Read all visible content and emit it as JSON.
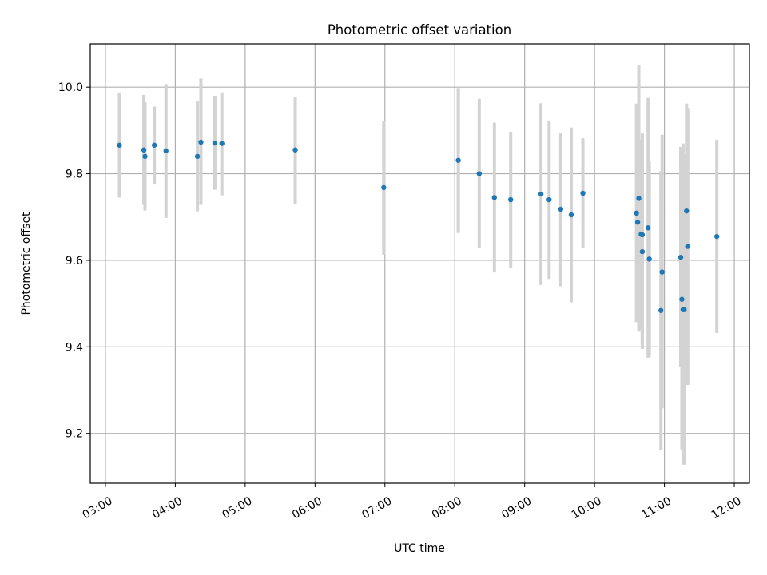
{
  "chart_data": {
    "type": "scatter",
    "title": "Photometric offset variation",
    "xlabel": "UTC time",
    "ylabel": "Photometric offset",
    "grid": true,
    "x_tick_labels": [
      "03:00",
      "04:00",
      "05:00",
      "06:00",
      "07:00",
      "08:00",
      "09:00",
      "10:00",
      "11:00",
      "12:00"
    ],
    "y_tick_labels": [
      "9.2",
      "9.4",
      "9.6",
      "9.8",
      "10.0"
    ],
    "y_ticks": [
      9.2,
      9.4,
      9.6,
      9.8,
      10.0
    ],
    "xlim": [
      "02:47",
      "12:13"
    ],
    "ylim": [
      9.085,
      10.1
    ],
    "marker_color": "#1f77b4",
    "errorbar_color": "#d3d3d3",
    "points": [
      {
        "x": "03:12",
        "y": 9.866,
        "ylo": 9.745,
        "yhi": 9.987
      },
      {
        "x": "03:33",
        "y": 9.855,
        "ylo": 9.728,
        "yhi": 9.982
      },
      {
        "x": "03:34",
        "y": 9.84,
        "ylo": 9.715,
        "yhi": 9.965
      },
      {
        "x": "03:42",
        "y": 9.866,
        "ylo": 9.775,
        "yhi": 9.955
      },
      {
        "x": "03:52",
        "y": 9.853,
        "ylo": 9.698,
        "yhi": 10.007
      },
      {
        "x": "04:19",
        "y": 9.84,
        "ylo": 9.713,
        "yhi": 9.968
      },
      {
        "x": "04:22",
        "y": 9.873,
        "ylo": 9.728,
        "yhi": 10.02
      },
      {
        "x": "04:34",
        "y": 9.871,
        "ylo": 9.763,
        "yhi": 9.98
      },
      {
        "x": "04:40",
        "y": 9.87,
        "ylo": 9.75,
        "yhi": 9.988
      },
      {
        "x": "05:43",
        "y": 9.855,
        "ylo": 9.73,
        "yhi": 9.978
      },
      {
        "x": "06:59",
        "y": 9.768,
        "ylo": 9.613,
        "yhi": 9.923
      },
      {
        "x": "08:03",
        "y": 9.831,
        "ylo": 9.663,
        "yhi": 9.998
      },
      {
        "x": "08:21",
        "y": 9.8,
        "ylo": 9.628,
        "yhi": 9.973
      },
      {
        "x": "08:34",
        "y": 9.745,
        "ylo": 9.572,
        "yhi": 9.918
      },
      {
        "x": "08:48",
        "y": 9.74,
        "ylo": 9.583,
        "yhi": 9.897
      },
      {
        "x": "09:14",
        "y": 9.753,
        "ylo": 9.543,
        "yhi": 9.963
      },
      {
        "x": "09:21",
        "y": 9.74,
        "ylo": 9.557,
        "yhi": 9.923
      },
      {
        "x": "09:31",
        "y": 9.718,
        "ylo": 9.54,
        "yhi": 9.895
      },
      {
        "x": "09:40",
        "y": 9.705,
        "ylo": 9.503,
        "yhi": 9.907
      },
      {
        "x": "09:50",
        "y": 9.755,
        "ylo": 9.628,
        "yhi": 9.882
      },
      {
        "x": "10:36",
        "y": 9.709,
        "ylo": 9.457,
        "yhi": 9.962
      },
      {
        "x": "10:37",
        "y": 9.688,
        "ylo": 9.47,
        "yhi": 9.906
      },
      {
        "x": "10:38",
        "y": 9.743,
        "ylo": 9.435,
        "yhi": 10.051
      },
      {
        "x": "10:40",
        "y": 9.66,
        "ylo": 9.44,
        "yhi": 9.879
      },
      {
        "x": "10:41",
        "y": 9.62,
        "ylo": 9.395,
        "yhi": 9.893
      },
      {
        "x": "10:41",
        "y": 9.659,
        "ylo": 9.41,
        "yhi": 9.86
      },
      {
        "x": "10:46",
        "y": 9.675,
        "ylo": 9.375,
        "yhi": 9.975
      },
      {
        "x": "10:47",
        "y": 9.603,
        "ylo": 9.378,
        "yhi": 9.828
      },
      {
        "x": "10:57",
        "y": 9.484,
        "ylo": 9.162,
        "yhi": 9.806
      },
      {
        "x": "10:58",
        "y": 9.573,
        "ylo": 9.258,
        "yhi": 9.89
      },
      {
        "x": "11:14",
        "y": 9.607,
        "ylo": 9.353,
        "yhi": 9.862
      },
      {
        "x": "11:15",
        "y": 9.51,
        "ylo": 9.163,
        "yhi": 9.856
      },
      {
        "x": "11:16",
        "y": 9.486,
        "ylo": 9.128,
        "yhi": 9.87
      },
      {
        "x": "11:17",
        "y": 9.486,
        "ylo": 9.128,
        "yhi": 9.845
      },
      {
        "x": "11:19",
        "y": 9.714,
        "ylo": 9.462,
        "yhi": 9.962
      },
      {
        "x": "11:20",
        "y": 9.632,
        "ylo": 9.312,
        "yhi": 9.952
      },
      {
        "x": "11:45",
        "y": 9.655,
        "ylo": 9.432,
        "yhi": 9.879
      }
    ]
  }
}
